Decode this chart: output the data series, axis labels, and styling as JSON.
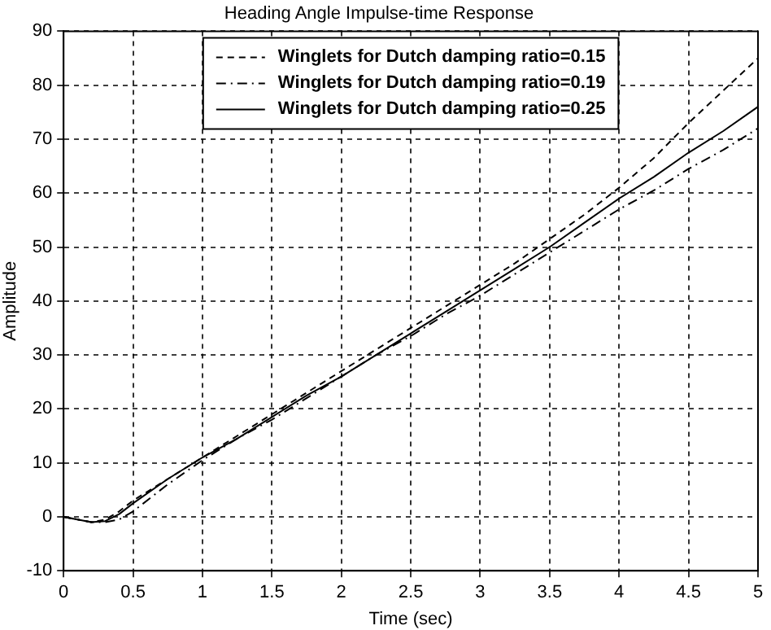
{
  "chart_data": {
    "type": "line",
    "title": "Heading Angle Impulse-time Response",
    "xlabel": "Time (sec)",
    "ylabel": "Amplitude",
    "x": [
      0,
      0.1,
      0.2,
      0.3,
      0.4,
      0.5,
      0.75,
      1,
      1.25,
      1.5,
      1.75,
      2,
      2.25,
      2.5,
      2.75,
      3,
      3.25,
      3.5,
      3.75,
      4,
      4.25,
      4.5,
      4.75,
      5
    ],
    "xlim": [
      0,
      5
    ],
    "xticks": [
      0,
      0.5,
      1,
      1.5,
      2,
      2.5,
      3,
      3.5,
      4,
      4.5,
      5
    ],
    "ylim": [
      -10,
      90
    ],
    "yticks": [
      -10,
      0,
      10,
      20,
      30,
      40,
      50,
      60,
      70,
      80,
      90
    ],
    "grid": true,
    "legend": "top",
    "marker": "none",
    "series": [
      {
        "name": "Winglets for Dutch damping ratio=0.15",
        "color": "#000000",
        "line_style": "dashed",
        "values": [
          0,
          -0.5,
          -1,
          -0.5,
          1,
          3,
          7,
          11,
          15,
          19,
          23,
          27,
          31,
          35,
          39,
          43,
          47,
          51.5,
          56,
          61,
          66.5,
          73,
          79,
          85
        ]
      },
      {
        "name": "Winglets for Dutch damping ratio=0.19",
        "color": "#000000",
        "line_style": "dashdot",
        "values": [
          0,
          -0.5,
          -1,
          -1,
          -0.5,
          1,
          6,
          10.5,
          14.5,
          18,
          22,
          26,
          30,
          33.5,
          37.5,
          41,
          45,
          49,
          53,
          57,
          60.5,
          64.5,
          68,
          72
        ]
      },
      {
        "name": "Winglets for Dutch damping ratio=0.25",
        "color": "#000000",
        "line_style": "solid",
        "values": [
          0,
          -0.5,
          -1,
          -0.8,
          0.5,
          2.5,
          7,
          11,
          14.5,
          18.5,
          22.5,
          26,
          30,
          34,
          38,
          42,
          46,
          50,
          54.5,
          59,
          63,
          67.5,
          71.5,
          76
        ]
      }
    ]
  }
}
